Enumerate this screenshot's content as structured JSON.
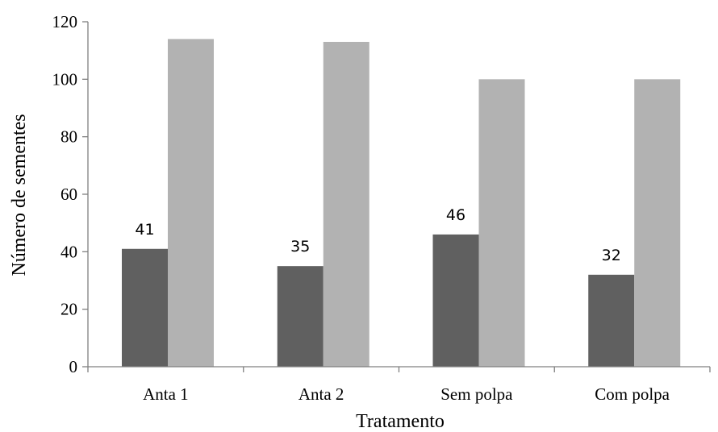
{
  "chart_data": {
    "type": "bar",
    "title": "",
    "xlabel": "Tratamento",
    "ylabel": "Número de sementes",
    "categories": [
      "Anta 1",
      "Anta 2",
      "Sem polpa",
      "Com polpa"
    ],
    "series": [
      {
        "values": [
          41,
          35,
          46,
          32
        ],
        "color": "#606060",
        "data_labels": [
          "41",
          "35",
          "46",
          "32"
        ]
      },
      {
        "values": [
          114,
          113,
          100,
          100
        ],
        "color": "#b2b2b2"
      }
    ],
    "ylim": [
      0,
      120
    ],
    "yticks": [
      0,
      20,
      40,
      60,
      80,
      100,
      120
    ],
    "grid": false,
    "legend": "none"
  }
}
